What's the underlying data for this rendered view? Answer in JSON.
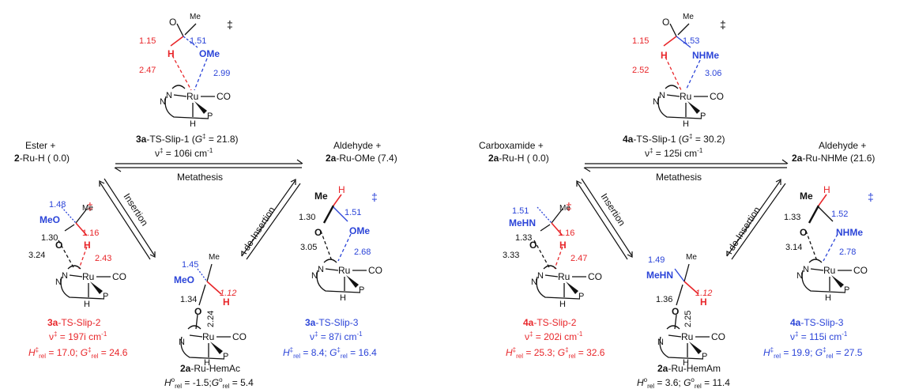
{
  "colors": {
    "black": "#111111",
    "red": "#e8262a",
    "blue": "#2b44d8"
  },
  "ester_ts1": {
    "dagger": "‡",
    "o_label": "O",
    "me_label": "Me",
    "ome_label": "OMe",
    "h_label": "H",
    "d_ch": "1.15",
    "d_co": "1.51",
    "d_h_ru": "2.47",
    "d_o_ru": "2.99",
    "title_num": "3a",
    "title_rest": "-TS-Slip-1 (",
    "g": "G",
    "g_sup": "‡",
    "title_val": " = 21.8)",
    "nu": "ν",
    "nu_sup": "‡",
    "nu_val": " = 106i cm",
    "cm_sup": "-1"
  },
  "ester_left": {
    "line1": "Ester +",
    "num": "2",
    "rest": "-Ru-H ( 0.0)"
  },
  "ester_right": {
    "line1": "Aldehyde +",
    "num": "2a",
    "rest": "-Ru-OMe (7.4)"
  },
  "ester_arrows": {
    "metathesis": "Metathesis",
    "insertion": "Insertion",
    "deinsertion": "de-Insertion"
  },
  "ester_ts2": {
    "dagger": "‡",
    "meo": "MeO",
    "me": "Me",
    "o": "O",
    "h": "H",
    "d1": "1.48",
    "d2": "1.30",
    "d3": "1.16",
    "d4": "3.24",
    "d5": "2.43",
    "label_num": "3a",
    "label_rest": "-TS-Slip-2",
    "nu_val": " = 197i cm",
    "h_rel": "17.0",
    "g_rel": "24.6"
  },
  "ester_hemac": {
    "meo": "MeO",
    "me": "Me",
    "o": "O",
    "h": "H",
    "d1": "1.45",
    "d2": "1.34",
    "d3": "1.12",
    "d4": "2.24",
    "label_num": "2a",
    "label_rest": "-Ru-HemAc",
    "h_rel": "-1.5",
    "g_rel": "5.4"
  },
  "ester_ts3": {
    "dagger": "‡",
    "me": "Me",
    "h": "H",
    "o": "O",
    "ome": "OMe",
    "d1": "1.30",
    "d2": "1.51",
    "d3": "3.05",
    "d4": "2.68",
    "label_num": "3a",
    "label_rest": "-TS-Slip-3",
    "nu_val": " = 87i cm",
    "h_rel": "8.4",
    "g_rel": "16.4"
  },
  "amide_ts1": {
    "dagger": "‡",
    "o_label": "O",
    "me_label": "Me",
    "nhme_label": "NHMe",
    "h_label": "H",
    "d_ch": "1.15",
    "d_cn": "1.53",
    "d_h_ru": "2.52",
    "d_n_ru": "3.06",
    "title_num": "4a",
    "title_rest": "-TS-Slip-1 (",
    "title_val": " = 30.2)",
    "nu_val": " = 125i cm"
  },
  "amide_left": {
    "line1": "Carboxamide +",
    "num": "2a",
    "rest": "-Ru-H ( 0.0)"
  },
  "amide_right": {
    "line1": "Aldehyde +",
    "num": "2a",
    "rest": "-Ru-NHMe (21.6)"
  },
  "amide_ts2": {
    "dagger": "‡",
    "mehn": "MeHN",
    "me": "Me",
    "o": "O",
    "h": "H",
    "d1": "1.51",
    "d2": "1.33",
    "d3": "1.16",
    "d4": "3.33",
    "d5": "2.47",
    "label_num": "4a",
    "label_rest": "-TS-Slip-2",
    "nu_val": " = 202i cm",
    "h_rel": "25.3",
    "g_rel": "32.6"
  },
  "amide_hemam": {
    "mehn": "MeHN",
    "me": "Me",
    "o": "O",
    "h": "H",
    "d1": "1.49",
    "d2": "1.36",
    "d3": "1.12",
    "d4": "2.25",
    "label_num": "2a",
    "label_rest": "-Ru-HemAm",
    "h_rel": "3.6",
    "g_rel": "11.4"
  },
  "amide_ts3": {
    "dagger": "‡",
    "me": "Me",
    "h": "H",
    "o": "O",
    "nhme": "NHMe",
    "d1": "1.33",
    "d2": "1.52",
    "d3": "3.14",
    "d4": "2.78",
    "label_num": "4a",
    "label_rest": "-TS-Slip-3",
    "nu_val": " = 115i cm",
    "h_rel": "19.9",
    "g_rel": "27.5"
  },
  "ru_core": {
    "n": "N",
    "ru": "Ru",
    "co": "CO",
    "p": "P",
    "h": "H"
  },
  "rel": {
    "h": "H",
    "g": "G",
    "ddag": "‡",
    "deg": "o",
    "rel": "rel"
  }
}
